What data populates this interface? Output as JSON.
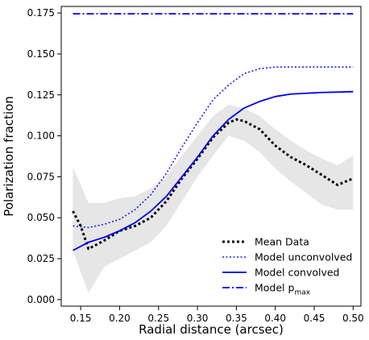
{
  "chart_data": {
    "type": "line",
    "xlabel": "Radial distance (arcsec)",
    "ylabel": "Polarization fraction",
    "xlim": [
      0.125,
      0.51
    ],
    "ylim": [
      -0.004,
      0.179
    ],
    "xticks": [
      0.15,
      0.2,
      0.25,
      0.3,
      0.35,
      0.4,
      0.45,
      0.5
    ],
    "xtick_labels": [
      "0.15",
      "0.20",
      "0.25",
      "0.30",
      "0.35",
      "0.40",
      "0.45",
      "0.50"
    ],
    "yticks": [
      0.0,
      0.025,
      0.05,
      0.075,
      0.1,
      0.125,
      0.15,
      0.175
    ],
    "ytick_labels": [
      "0.000",
      "0.025",
      "0.050",
      "0.075",
      "0.100",
      "0.125",
      "0.150",
      "0.175"
    ],
    "legend_position": "lower-right",
    "grid": false,
    "band": {
      "color": "#e6e6e6",
      "x": [
        0.14,
        0.16,
        0.18,
        0.2,
        0.22,
        0.24,
        0.26,
        0.28,
        0.3,
        0.32,
        0.34,
        0.36,
        0.38,
        0.4,
        0.42,
        0.44,
        0.46,
        0.48,
        0.5
      ],
      "lower": [
        0.03,
        0.004,
        0.02,
        0.025,
        0.03,
        0.035,
        0.045,
        0.06,
        0.075,
        0.088,
        0.1,
        0.097,
        0.09,
        0.08,
        0.072,
        0.065,
        0.058,
        0.055,
        0.055
      ],
      "upper": [
        0.081,
        0.059,
        0.059,
        0.062,
        0.063,
        0.068,
        0.075,
        0.088,
        0.1,
        0.112,
        0.119,
        0.117,
        0.112,
        0.104,
        0.097,
        0.091,
        0.086,
        0.082,
        0.088
      ]
    },
    "series": [
      {
        "name": "Mean Data",
        "style": "dotted",
        "color": "#000000",
        "width": 3,
        "x": [
          0.14,
          0.15,
          0.16,
          0.18,
          0.2,
          0.22,
          0.24,
          0.26,
          0.28,
          0.3,
          0.32,
          0.34,
          0.35,
          0.36,
          0.38,
          0.4,
          0.42,
          0.44,
          0.46,
          0.48,
          0.5
        ],
        "y": [
          0.054,
          0.045,
          0.031,
          0.036,
          0.042,
          0.045,
          0.05,
          0.06,
          0.074,
          0.086,
          0.099,
          0.108,
          0.11,
          0.109,
          0.104,
          0.094,
          0.087,
          0.082,
          0.076,
          0.07,
          0.074
        ]
      },
      {
        "name": "Model unconvolved",
        "style": "dotted",
        "color": "#1a1aff",
        "width": 1.6,
        "x": [
          0.14,
          0.16,
          0.18,
          0.2,
          0.22,
          0.24,
          0.26,
          0.28,
          0.3,
          0.32,
          0.34,
          0.36,
          0.38,
          0.4,
          0.42,
          0.44,
          0.46,
          0.48,
          0.5
        ],
        "y": [
          0.045,
          0.044,
          0.046,
          0.049,
          0.055,
          0.064,
          0.077,
          0.093,
          0.108,
          0.122,
          0.131,
          0.138,
          0.141,
          0.142,
          0.142,
          0.142,
          0.142,
          0.142,
          0.142
        ]
      },
      {
        "name": "Model convolved",
        "style": "solid",
        "color": "#0000ee",
        "width": 1.8,
        "x": [
          0.14,
          0.16,
          0.18,
          0.2,
          0.22,
          0.24,
          0.26,
          0.28,
          0.3,
          0.32,
          0.34,
          0.36,
          0.38,
          0.4,
          0.42,
          0.44,
          0.46,
          0.48,
          0.5
        ],
        "y": [
          0.03,
          0.035,
          0.038,
          0.042,
          0.047,
          0.054,
          0.063,
          0.075,
          0.087,
          0.1,
          0.11,
          0.117,
          0.121,
          0.124,
          0.1255,
          0.126,
          0.1265,
          0.1267,
          0.127
        ]
      },
      {
        "name": "Model p",
        "name_subscript": "max",
        "style": "dashdot",
        "color": "#0000ee",
        "width": 1.8,
        "x": [
          0.14,
          0.5
        ],
        "y": [
          0.1745,
          0.1745
        ]
      }
    ]
  }
}
